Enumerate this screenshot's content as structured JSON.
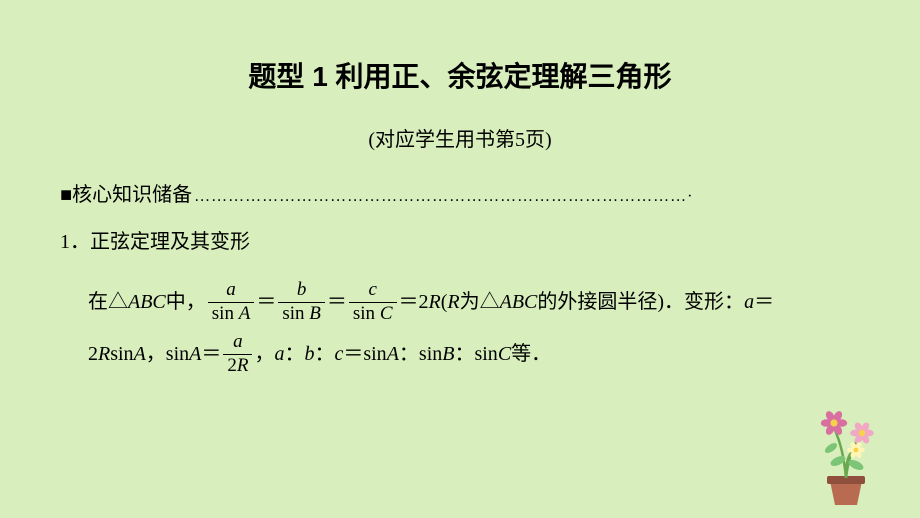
{
  "colors": {
    "background": "#d8eebd",
    "text": "#000000",
    "pot": "#b96b52",
    "pot_dark": "#8e4f3c",
    "stem": "#6aa84f",
    "leaf": "#7cc576",
    "flower1": "#d96fa1",
    "flower2": "#f0a8c4",
    "flower3": "#fff6b5",
    "center": "#f5d24a"
  },
  "title": "题型 1  利用正、余弦定理解三角形",
  "subtitle": "(对应学生用书第5页)",
  "section_marker": "■",
  "section_label": "核心知识储备",
  "dots": "……………………………………………………………………………·",
  "item1_label": "1．正弦定理及其变形",
  "line1": {
    "prefix": "在△",
    "abc": "ABC",
    "mid1": "中，",
    "fracs": [
      {
        "num": "a",
        "den_pre": "sin ",
        "den_var": "A"
      },
      {
        "num": "b",
        "den_pre": "sin ",
        "den_var": "B"
      },
      {
        "num": "c",
        "den_pre": "sin ",
        "den_var": "C"
      }
    ],
    "eq": "＝",
    "two_r": "2R",
    "paren_open": "(",
    "r": "R",
    "mid2": "为△",
    "abc2": "ABC",
    "mid3": "的外接圆半径)．变形：",
    "a": "a",
    "tail_eq": "＝"
  },
  "line2": {
    "two_r_sin": "2R",
    "sin": "sin ",
    "A": "A",
    "comma": "，",
    "sinA_eq": "sin ",
    "A2": "A",
    "eq": "＝",
    "frac": {
      "num": "a",
      "den": "2R"
    },
    "comma2": "，",
    "ratio_pre": "a",
    "colon": "：",
    "b": "b",
    "c": "c",
    "eq2": "＝",
    "sin2": "sin ",
    "B": "B",
    "C": "C",
    "tail": "等．"
  }
}
